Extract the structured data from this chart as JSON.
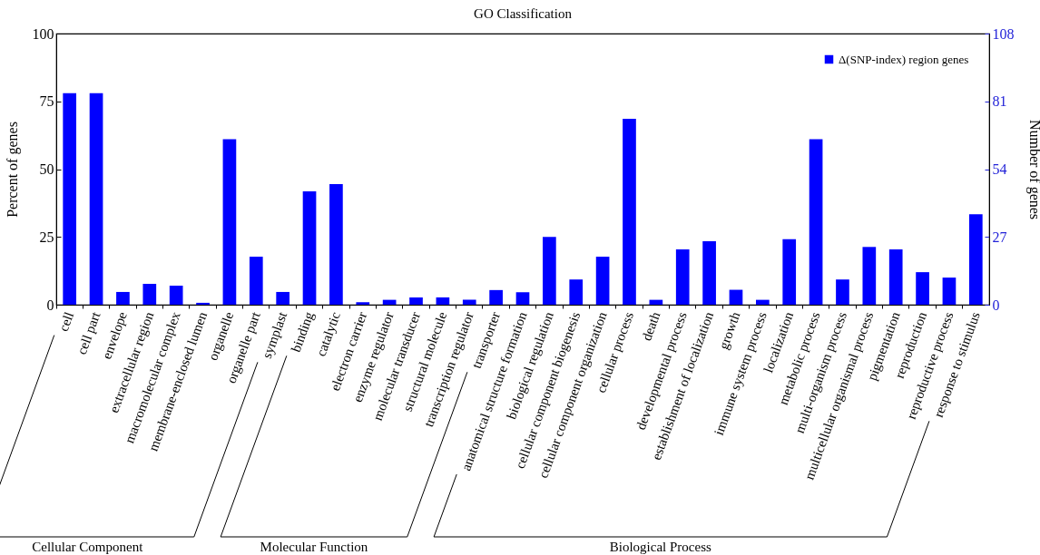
{
  "chart_data": {
    "type": "bar",
    "title": "GO Classification",
    "ylabel": "Percent of genes",
    "y2label": "Number of genes",
    "categories": [
      "cell",
      "cell part",
      "envelope",
      "extracellular region",
      "macromolecular complex",
      "membrane-enclosed lumen",
      "organelle",
      "organelle part",
      "symplast",
      "binding",
      "catalytic",
      "electron carrier",
      "enzyme regulator",
      "molecular transducer",
      "structural molecule",
      "transcription regulator",
      "transporter",
      "anatomical structure formation",
      "biological regulation",
      "cellular component biogenesis",
      "cellular component organization",
      "cellular process",
      "death",
      "developmental process",
      "establishment of localization",
      "growth",
      "immune system process",
      "localization",
      "metabolic process",
      "multi-organism process",
      "multicellular organismal process",
      "pigmentation",
      "reproduction",
      "reproductive process",
      "response to stimulus"
    ],
    "series": [
      {
        "name": "Δ(SNP-index) region genes",
        "color": "#0000ff",
        "values": [
          78,
          78,
          4.7,
          7.7,
          7,
          0.7,
          61,
          17.7,
          4.7,
          41.8,
          44.5,
          0.9,
          1.8,
          2.7,
          2.7,
          1.8,
          5.4,
          4.6,
          25,
          9.3,
          17.7,
          68.6,
          1.8,
          20.4,
          23.4,
          5.5,
          1.8,
          24.2,
          61,
          9.3,
          21.3,
          20.4,
          12,
          10,
          33.4
        ]
      }
    ],
    "ylim": [
      0,
      100
    ],
    "yticks": [
      0,
      25,
      50,
      75,
      100
    ],
    "y2lim": [
      0,
      108
    ],
    "y2ticks": [
      0,
      27,
      54,
      81,
      108
    ],
    "legend": "top right",
    "annotations": [
      "Cellular Component",
      "Molecular Function",
      "Biological Process"
    ]
  }
}
